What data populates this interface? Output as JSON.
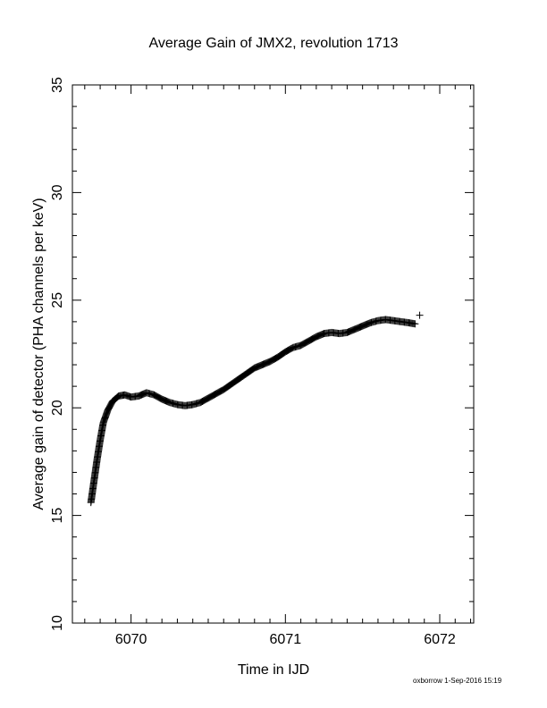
{
  "footer": {
    "stamp": "oxborrow  1-Sep-2016 15:19"
  },
  "chart_data": {
    "type": "scatter",
    "title": "Average Gain of JMX2, revolution 1713",
    "xlabel": "Time in IJD",
    "ylabel": "Average gain of detector (PHA channels per keV)",
    "xlim": [
      6069.62,
      6072.22
    ],
    "ylim": [
      10,
      35
    ],
    "xticks": [
      6070,
      6071,
      6072
    ],
    "xtick_labels": [
      "6070",
      "6071",
      "6072"
    ],
    "yticks": [
      10,
      15,
      20,
      25,
      30,
      35
    ],
    "ytick_labels": [
      "10",
      "15",
      "20",
      "25",
      "30",
      "35"
    ],
    "marker": "+",
    "grid": false,
    "series": [
      {
        "x": [
          6069.74,
          6069.76,
          6069.78,
          6069.8,
          6069.82,
          6069.85,
          6069.88,
          6069.92,
          6069.96,
          6070.0,
          6070.05,
          6070.1,
          6070.15,
          6070.2,
          6070.25,
          6070.3,
          6070.35,
          6070.4,
          6070.45,
          6070.5,
          6070.55,
          6070.6,
          6070.65,
          6070.7,
          6070.75,
          6070.8,
          6070.85,
          6070.9,
          6070.95,
          6071.0,
          6071.05,
          6071.1,
          6071.15,
          6071.2,
          6071.25,
          6071.3,
          6071.35,
          6071.4,
          6071.45,
          6071.5,
          6071.55,
          6071.6,
          6071.65,
          6071.7,
          6071.75,
          6071.8,
          6071.84,
          6071.87
        ],
        "y": [
          15.6,
          16.6,
          17.6,
          18.5,
          19.3,
          19.9,
          20.3,
          20.55,
          20.6,
          20.5,
          20.55,
          20.7,
          20.6,
          20.4,
          20.25,
          20.15,
          20.1,
          20.15,
          20.25,
          20.45,
          20.65,
          20.85,
          21.1,
          21.35,
          21.6,
          21.85,
          22.0,
          22.15,
          22.35,
          22.6,
          22.8,
          22.9,
          23.1,
          23.3,
          23.45,
          23.5,
          23.45,
          23.5,
          23.65,
          23.8,
          23.95,
          24.05,
          24.1,
          24.05,
          24.0,
          23.95,
          23.9,
          24.3
        ]
      }
    ]
  }
}
